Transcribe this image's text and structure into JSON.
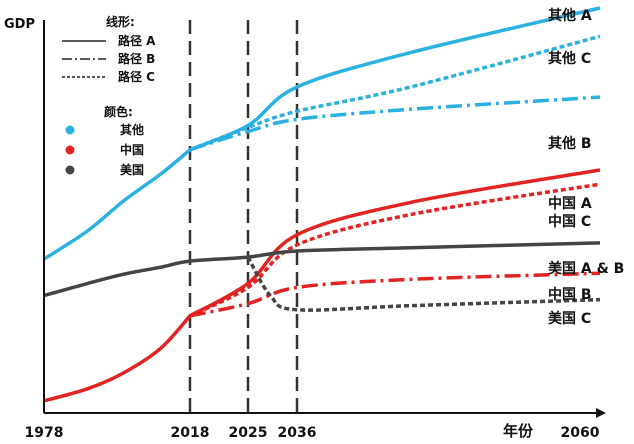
{
  "chart_data": {
    "type": "line",
    "ylabel": "GDP",
    "xlabel": "年份",
    "x_ticks": [
      "1978",
      "2018",
      "2025",
      "2036",
      "2060"
    ],
    "xlim": [
      1978,
      2060
    ],
    "vlines": [
      2018,
      2025,
      2036
    ],
    "grid": false,
    "legend": {
      "placement": "top-left",
      "style_title": "线形:",
      "styles": [
        {
          "label": "路径 A",
          "dash": "solid"
        },
        {
          "label": "路径 B",
          "dash": "dashdot"
        },
        {
          "label": "路径 C",
          "dash": "dotted"
        }
      ],
      "color_title": "颜色:",
      "colors": [
        {
          "label": "其他",
          "color": "#2ab1e2"
        },
        {
          "label": "中国",
          "color": "#e32222"
        },
        {
          "label": "美国",
          "color": "#444444"
        }
      ]
    },
    "series": [
      {
        "name": "其他",
        "color": "#2ab1e2",
        "path": "",
        "dash": "solid",
        "x": [
          1978,
          1990,
          2000,
          2010,
          2018
        ],
        "y": [
          38,
          45,
          52.5,
          59,
          65
        ]
      },
      {
        "name": "其他",
        "color": "#2ab1e2",
        "path": "A",
        "dash": "solid",
        "x": [
          2018,
          2025,
          2036,
          2045,
          2060
        ],
        "y": [
          65,
          71,
          80.5,
          89,
          100
        ]
      },
      {
        "name": "其他",
        "color": "#2ab1e2",
        "path": "C",
        "dash": "dotted",
        "x": [
          2018,
          2025,
          2036,
          2045,
          2060
        ],
        "y": [
          65,
          70.5,
          74.5,
          80.5,
          93
        ]
      },
      {
        "name": "其他",
        "color": "#2ab1e2",
        "path": "B",
        "dash": "dashdot",
        "x": [
          2018,
          2025,
          2036,
          2045,
          2060
        ],
        "y": [
          65,
          69.5,
          72.5,
          75,
          78
        ]
      },
      {
        "name": "中国",
        "color": "#e32222",
        "path": "",
        "dash": "solid",
        "x": [
          1978,
          1990,
          2000,
          2010,
          2018
        ],
        "y": [
          3,
          6,
          10,
          16,
          24
        ]
      },
      {
        "name": "中国",
        "color": "#e32222",
        "path": "A",
        "dash": "solid",
        "x": [
          2018,
          2025,
          2036,
          2045,
          2060
        ],
        "y": [
          24,
          32,
          44,
          52,
          60
        ]
      },
      {
        "name": "中国",
        "color": "#e32222",
        "path": "C",
        "dash": "dotted",
        "x": [
          2018,
          2025,
          2036,
          2045,
          2060
        ],
        "y": [
          24,
          31,
          41.5,
          49,
          56.5
        ]
      },
      {
        "name": "中国",
        "color": "#e32222",
        "path": "B",
        "dash": "dashdot",
        "x": [
          2018,
          2025,
          2036,
          2045,
          2060
        ],
        "y": [
          24,
          27,
          31,
          33,
          34.5
        ]
      },
      {
        "name": "美国",
        "color": "#444444",
        "path": "A & B",
        "dash": "solid",
        "x": [
          1978,
          1990,
          2000,
          2010,
          2018,
          2025,
          2036,
          2045,
          2060
        ],
        "y": [
          29,
          32,
          34.3,
          36,
          37.5,
          38.5,
          40,
          40.8,
          42
        ]
      },
      {
        "name": "美国",
        "color": "#444444",
        "path": "C",
        "dash": "dotted",
        "x": [
          2025,
          2030,
          2036,
          2045,
          2060
        ],
        "y": [
          38.5,
          29,
          25.5,
          26.5,
          28
        ]
      }
    ],
    "end_labels": [
      {
        "text": "其他 A",
        "y": 100
      },
      {
        "text": "其他 C",
        "y": 93
      },
      {
        "text": "其他 B",
        "y": 78
      },
      {
        "text": "中国 A",
        "y": 61
      },
      {
        "text": "中国 C",
        "y": 57
      },
      {
        "text": "美国 A & B",
        "y": 44
      },
      {
        "text": "中国 B",
        "y": 36
      },
      {
        "text": "美国 C",
        "y": 30
      }
    ]
  }
}
